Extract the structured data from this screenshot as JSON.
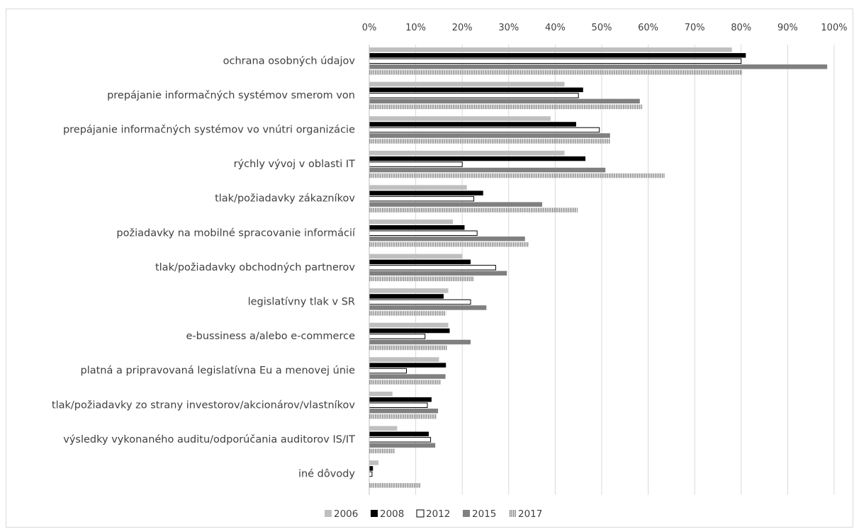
{
  "chart_data": {
    "type": "bar",
    "orientation": "horizontal",
    "title": "",
    "xlabel": "",
    "ylabel": "",
    "xlim": [
      0,
      100
    ],
    "x_ticks": [
      "0%",
      "10%",
      "20%",
      "30%",
      "40%",
      "50%",
      "60%",
      "70%",
      "80%",
      "90%",
      "100%"
    ],
    "x_axis_position": "top",
    "grid": "vertical",
    "legend": "bottom",
    "categories": [
      "ochrana osobných údajov",
      "prepájanie informačných systémov smerom von",
      "prepájanie informačných systémov vo vnútri organizácie",
      "rýchly vývoj v oblasti IT",
      "tlak/požiadavky zákazníkov",
      "požiadavky na mobilné spracovanie informácií",
      "tlak/požiadavky obchodných partnerov",
      "legislatívny tlak v SR",
      "e-bussiness a/alebo e-commerce",
      "platná a pripravovaná legislatívna Eu a menovej únie",
      "tlak/požiadavky zo strany investorov/akcionárov/vlastníkov",
      "výsledky vykonaného auditu/odporúčania auditorov IS/IT",
      "iné dôvody"
    ],
    "series": [
      {
        "name": "2006",
        "style": "solid",
        "color": "#bfbfbf",
        "values": [
          78,
          42,
          39,
          42,
          21,
          18,
          20,
          17,
          17,
          15,
          5,
          6,
          2
        ]
      },
      {
        "name": "2008",
        "style": "solid",
        "color": "#000000",
        "values": [
          81,
          46,
          44.5,
          46.5,
          24.5,
          20.5,
          21.8,
          16,
          17.3,
          16.5,
          13.4,
          12.8,
          0.8
        ]
      },
      {
        "name": "2012",
        "style": "outline",
        "color": "#ffffff",
        "values": [
          80,
          45,
          49.5,
          20,
          22.5,
          23.2,
          27.2,
          21.8,
          12,
          8,
          12.5,
          13.2,
          0.6
        ]
      },
      {
        "name": "2015",
        "style": "solid",
        "color": "#808080",
        "values": [
          98.5,
          58.2,
          51.8,
          50.8,
          37.2,
          33.5,
          29.6,
          25.2,
          21.8,
          16.4,
          14.8,
          14.2,
          0
        ]
      },
      {
        "name": "2017",
        "style": "hatched",
        "color": "#7f7f7f",
        "values": [
          80.2,
          58.8,
          51.8,
          63.5,
          44.8,
          34.3,
          22.5,
          16.5,
          16.8,
          15.4,
          14.5,
          5.5,
          11
        ]
      }
    ]
  }
}
